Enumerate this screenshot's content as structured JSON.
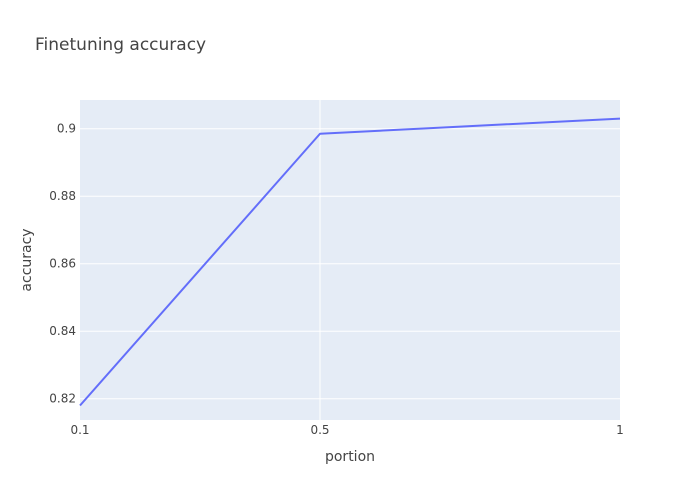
{
  "chart_data": {
    "type": "line",
    "title": "Finetuning accuracy",
    "xlabel": "portion",
    "ylabel": "accuracy",
    "x": [
      0.1,
      0.5,
      1
    ],
    "series": [
      {
        "values": [
          0.818,
          0.8985,
          0.903
        ]
      }
    ],
    "xlim": [
      0.1,
      1
    ],
    "ylim": [
      0.8137,
      0.9085
    ],
    "xticks": [
      {
        "value": 0.1,
        "label": "0.1"
      },
      {
        "value": 0.5,
        "label": "0.5"
      },
      {
        "value": 1,
        "label": "1"
      }
    ],
    "yticks": [
      {
        "value": 0.82,
        "label": "0.82"
      },
      {
        "value": 0.84,
        "label": "0.84"
      },
      {
        "value": 0.86,
        "label": "0.86"
      },
      {
        "value": 0.88,
        "label": "0.88"
      },
      {
        "value": 0.9,
        "label": "0.9"
      }
    ],
    "grid": true,
    "colors": {
      "plot_background": "#e5ecf6",
      "grid": "#ffffff",
      "line": "#636efa",
      "text": "#444444"
    }
  }
}
